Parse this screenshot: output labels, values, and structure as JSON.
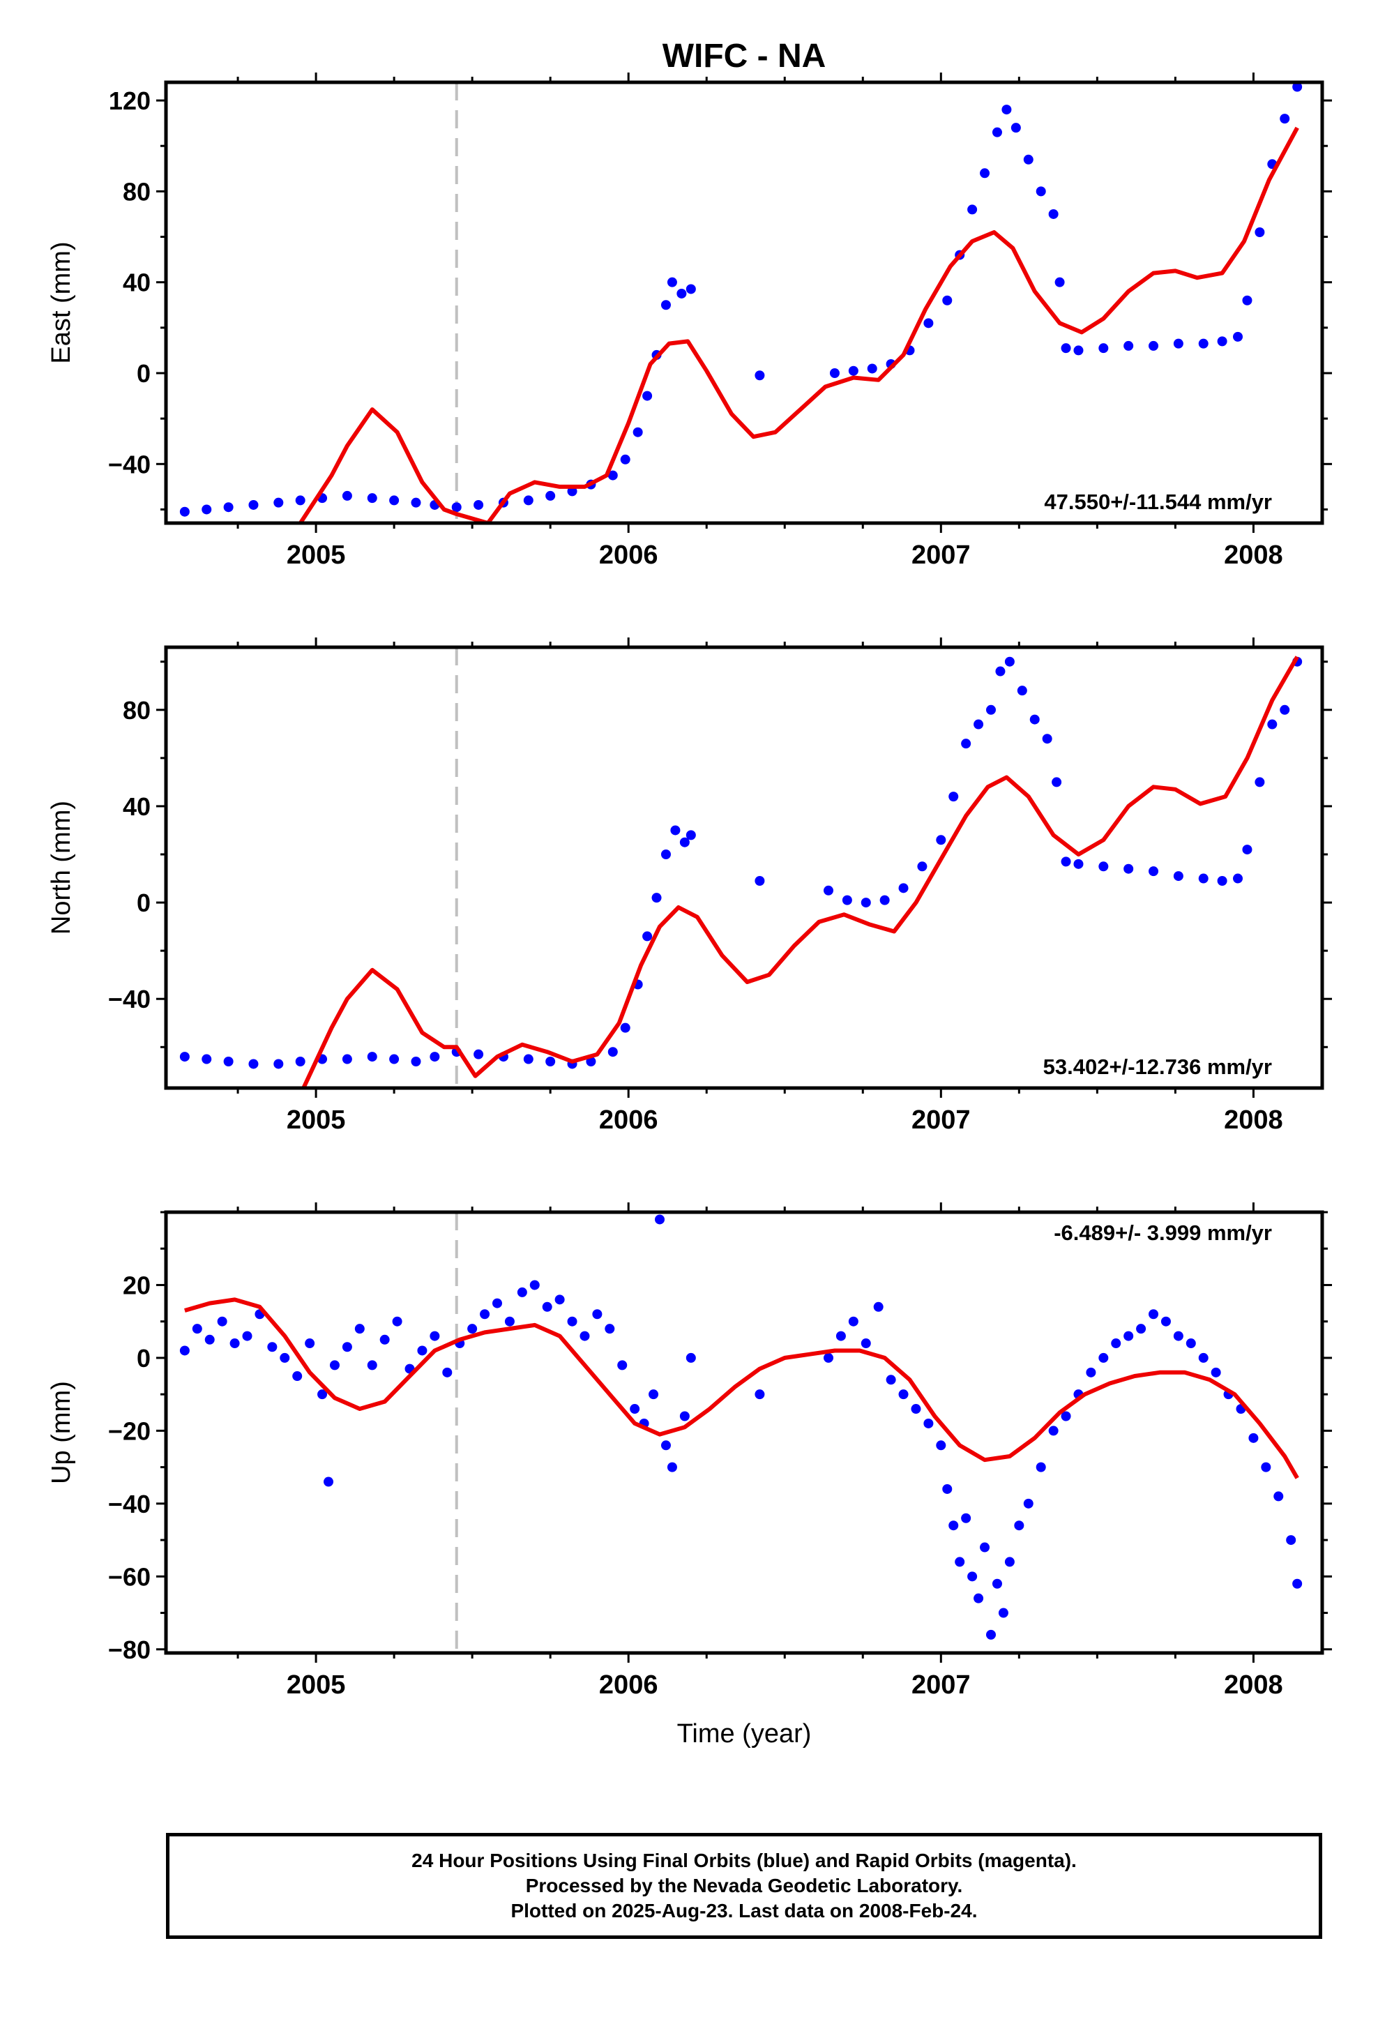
{
  "title": "WIFC - NA",
  "footer": {
    "line1": "24 Hour Positions Using Final Orbits (blue) and Rapid Orbits (magenta).",
    "line2": "Processed by the Nevada Geodetic Laboratory.",
    "line3": "Plotted on 2025-Aug-23. Last data on 2008-Feb-24."
  },
  "colors": {
    "points": "#0000ff",
    "model": "#ee0000",
    "event_line": "#c0c0c0",
    "axes": "#000000"
  },
  "chart_data": [
    {
      "type": "scatter",
      "component": "East",
      "ylabel": "East (mm)",
      "xlabel": "",
      "xlim": [
        2004.52,
        2008.22
      ],
      "ylim": [
        -66,
        128
      ],
      "xticks": [
        2005,
        2006,
        2007,
        2008
      ],
      "yticks": [
        -40,
        0,
        40,
        80,
        120
      ],
      "event_line_x": 2005.45,
      "rate_label": "47.550+/-11.544 mm/yr",
      "rate_position": "bottom-right",
      "observations": {
        "x": [
          2004.58,
          2004.65,
          2004.72,
          2004.8,
          2004.88,
          2004.95,
          2005.02,
          2005.1,
          2005.18,
          2005.25,
          2005.32,
          2005.38,
          2005.45,
          2005.52,
          2005.6,
          2005.68,
          2005.75,
          2005.82,
          2005.88,
          2005.95,
          2005.99,
          2006.03,
          2006.06,
          2006.09,
          2006.12,
          2006.14,
          2006.17,
          2006.2,
          2006.42,
          2006.66,
          2006.72,
          2006.78,
          2006.84,
          2006.9,
          2006.96,
          2007.02,
          2007.06,
          2007.1,
          2007.14,
          2007.18,
          2007.21,
          2007.24,
          2007.28,
          2007.32,
          2007.36,
          2007.38,
          2007.4,
          2007.44,
          2007.52,
          2007.6,
          2007.68,
          2007.76,
          2007.84,
          2007.9,
          2007.95,
          2007.98,
          2008.02,
          2008.06,
          2008.1,
          2008.14
        ],
        "y": [
          -61,
          -60,
          -59,
          -58,
          -57,
          -56,
          -55,
          -54,
          -55,
          -56,
          -57,
          -58,
          -59,
          -58,
          -57,
          -56,
          -54,
          -52,
          -49,
          -45,
          -38,
          -26,
          -10,
          8,
          30,
          40,
          35,
          37,
          -1,
          0,
          1,
          2,
          4,
          10,
          22,
          32,
          52,
          72,
          88,
          106,
          116,
          108,
          94,
          80,
          70,
          40,
          11,
          10,
          11,
          12,
          12,
          13,
          13,
          14,
          16,
          32,
          62,
          92,
          112,
          126
        ]
      },
      "model": {
        "x": [
          2004.95,
          2005.05,
          2005.1,
          2005.18,
          2005.26,
          2005.34,
          2005.41,
          2005.45,
          2005.55,
          2005.62,
          2005.7,
          2005.78,
          2005.86,
          2005.93,
          2006.0,
          2006.07,
          2006.13,
          2006.19,
          2006.25,
          2006.33,
          2006.4,
          2006.47,
          2006.55,
          2006.63,
          2006.72,
          2006.8,
          2006.88,
          2006.95,
          2007.03,
          2007.1,
          2007.17,
          2007.23,
          2007.3,
          2007.38,
          2007.45,
          2007.52,
          2007.6,
          2007.68,
          2007.75,
          2007.82,
          2007.9,
          2007.97,
          2008.05,
          2008.14
        ],
        "y": [
          -66,
          -45,
          -32,
          -16,
          -26,
          -48,
          -60,
          -62,
          -66,
          -53,
          -48,
          -50,
          -50,
          -45,
          -22,
          4,
          13,
          14,
          1,
          -18,
          -28,
          -26,
          -16,
          -6,
          -2,
          -3,
          8,
          28,
          47,
          58,
          62,
          55,
          36,
          22,
          18,
          24,
          36,
          44,
          45,
          42,
          44,
          58,
          85,
          108
        ]
      }
    },
    {
      "type": "scatter",
      "component": "North",
      "ylabel": "North (mm)",
      "xlabel": "",
      "xlim": [
        2004.52,
        2008.22
      ],
      "ylim": [
        -77,
        106
      ],
      "xticks": [
        2005,
        2006,
        2007,
        2008
      ],
      "yticks": [
        -40,
        0,
        40,
        80
      ],
      "event_line_x": 2005.45,
      "rate_label": "53.402+/-12.736 mm/yr",
      "rate_position": "bottom-right",
      "observations": {
        "x": [
          2004.58,
          2004.65,
          2004.72,
          2004.8,
          2004.88,
          2004.95,
          2005.02,
          2005.1,
          2005.18,
          2005.25,
          2005.32,
          2005.38,
          2005.45,
          2005.52,
          2005.6,
          2005.68,
          2005.75,
          2005.82,
          2005.88,
          2005.95,
          2005.99,
          2006.03,
          2006.06,
          2006.09,
          2006.12,
          2006.15,
          2006.18,
          2006.2,
          2006.42,
          2006.64,
          2006.7,
          2006.76,
          2006.82,
          2006.88,
          2006.94,
          2007.0,
          2007.04,
          2007.08,
          2007.12,
          2007.16,
          2007.19,
          2007.22,
          2007.26,
          2007.3,
          2007.34,
          2007.37,
          2007.4,
          2007.44,
          2007.52,
          2007.6,
          2007.68,
          2007.76,
          2007.84,
          2007.9,
          2007.95,
          2007.98,
          2008.02,
          2008.06,
          2008.1,
          2008.14
        ],
        "y": [
          -64,
          -65,
          -66,
          -67,
          -67,
          -66,
          -65,
          -65,
          -64,
          -65,
          -66,
          -64,
          -62,
          -63,
          -64,
          -65,
          -66,
          -67,
          -66,
          -62,
          -52,
          -34,
          -14,
          2,
          20,
          30,
          25,
          28,
          9,
          5,
          1,
          0,
          1,
          6,
          15,
          26,
          44,
          66,
          74,
          80,
          96,
          100,
          88,
          76,
          68,
          50,
          17,
          16,
          15,
          14,
          13,
          11,
          10,
          9,
          10,
          22,
          50,
          74,
          80,
          100
        ]
      },
      "model": {
        "x": [
          2004.96,
          2005.05,
          2005.1,
          2005.18,
          2005.26,
          2005.34,
          2005.41,
          2005.45,
          2005.51,
          2005.58,
          2005.66,
          2005.74,
          2005.82,
          2005.9,
          2005.97,
          2006.04,
          2006.1,
          2006.16,
          2006.22,
          2006.3,
          2006.38,
          2006.45,
          2006.53,
          2006.61,
          2006.69,
          2006.77,
          2006.85,
          2006.92,
          2007.0,
          2007.08,
          2007.15,
          2007.21,
          2007.28,
          2007.36,
          2007.44,
          2007.52,
          2007.6,
          2007.68,
          2007.75,
          2007.83,
          2007.91,
          2007.98,
          2008.06,
          2008.14
        ],
        "y": [
          -77,
          -52,
          -40,
          -28,
          -36,
          -54,
          -60,
          -60,
          -72,
          -64,
          -59,
          -62,
          -66,
          -63,
          -50,
          -26,
          -10,
          -2,
          -6,
          -22,
          -33,
          -30,
          -18,
          -8,
          -5,
          -9,
          -12,
          0,
          18,
          36,
          48,
          52,
          44,
          28,
          20,
          26,
          40,
          48,
          47,
          41,
          44,
          60,
          84,
          102
        ]
      }
    },
    {
      "type": "scatter",
      "component": "Up",
      "ylabel": "Up (mm)",
      "xlabel": "Time (year)",
      "xlim": [
        2004.52,
        2008.22
      ],
      "ylim": [
        -81,
        40
      ],
      "xticks": [
        2005,
        2006,
        2007,
        2008
      ],
      "yticks": [
        -80,
        -60,
        -40,
        -20,
        0,
        20
      ],
      "event_line_x": 2005.45,
      "rate_label": "-6.489+/- 3.999 mm/yr",
      "rate_position": "top-right",
      "observations": {
        "x": [
          2004.58,
          2004.62,
          2004.66,
          2004.7,
          2004.74,
          2004.78,
          2004.82,
          2004.86,
          2004.9,
          2004.94,
          2004.98,
          2005.02,
          2005.04,
          2005.06,
          2005.1,
          2005.14,
          2005.18,
          2005.22,
          2005.26,
          2005.3,
          2005.34,
          2005.38,
          2005.42,
          2005.46,
          2005.5,
          2005.54,
          2005.58,
          2005.62,
          2005.66,
          2005.7,
          2005.74,
          2005.78,
          2005.82,
          2005.86,
          2005.9,
          2005.94,
          2005.98,
          2006.02,
          2006.05,
          2006.08,
          2006.1,
          2006.12,
          2006.14,
          2006.18,
          2006.2,
          2006.42,
          2006.64,
          2006.68,
          2006.72,
          2006.76,
          2006.8,
          2006.84,
          2006.88,
          2006.92,
          2006.96,
          2007.0,
          2007.02,
          2007.04,
          2007.06,
          2007.08,
          2007.1,
          2007.12,
          2007.14,
          2007.16,
          2007.18,
          2007.2,
          2007.22,
          2007.25,
          2007.28,
          2007.32,
          2007.36,
          2007.4,
          2007.44,
          2007.48,
          2007.52,
          2007.56,
          2007.6,
          2007.64,
          2007.68,
          2007.72,
          2007.76,
          2007.8,
          2007.84,
          2007.88,
          2007.92,
          2007.96,
          2008.0,
          2008.04,
          2008.08,
          2008.12,
          2008.14
        ],
        "y": [
          2,
          8,
          5,
          10,
          4,
          6,
          12,
          3,
          0,
          -5,
          4,
          -10,
          -34,
          -2,
          3,
          8,
          -2,
          5,
          10,
          -3,
          2,
          6,
          -4,
          4,
          8,
          12,
          15,
          10,
          18,
          20,
          14,
          16,
          10,
          6,
          12,
          8,
          -2,
          -14,
          -18,
          -10,
          38,
          -24,
          -30,
          -16,
          0,
          -10,
          0,
          6,
          10,
          4,
          14,
          -6,
          -10,
          -14,
          -18,
          -24,
          -36,
          -46,
          -56,
          -44,
          -60,
          -66,
          -52,
          -76,
          -62,
          -70,
          -56,
          -46,
          -40,
          -30,
          -20,
          -16,
          -10,
          -4,
          0,
          4,
          6,
          8,
          12,
          10,
          6,
          4,
          0,
          -4,
          -10,
          -14,
          -22,
          -30,
          -38,
          -50,
          -62
        ]
      },
      "model": {
        "x": [
          2004.58,
          2004.66,
          2004.74,
          2004.82,
          2004.9,
          2004.98,
          2005.06,
          2005.14,
          2005.22,
          2005.3,
          2005.38,
          2005.46,
          2005.54,
          2005.62,
          2005.7,
          2005.78,
          2005.86,
          2005.94,
          2006.02,
          2006.1,
          2006.18,
          2006.26,
          2006.34,
          2006.42,
          2006.5,
          2006.58,
          2006.66,
          2006.74,
          2006.82,
          2006.9,
          2006.98,
          2007.06,
          2007.14,
          2007.22,
          2007.3,
          2007.38,
          2007.46,
          2007.54,
          2007.62,
          2007.7,
          2007.78,
          2007.86,
          2007.94,
          2008.02,
          2008.1,
          2008.14
        ],
        "y": [
          13,
          15,
          16,
          14,
          6,
          -4,
          -11,
          -14,
          -12,
          -5,
          2,
          5,
          7,
          8,
          9,
          6,
          -2,
          -10,
          -18,
          -21,
          -19,
          -14,
          -8,
          -3,
          0,
          1,
          2,
          2,
          0,
          -6,
          -16,
          -24,
          -28,
          -27,
          -22,
          -15,
          -10,
          -7,
          -5,
          -4,
          -4,
          -6,
          -10,
          -18,
          -27,
          -33
        ]
      }
    }
  ]
}
